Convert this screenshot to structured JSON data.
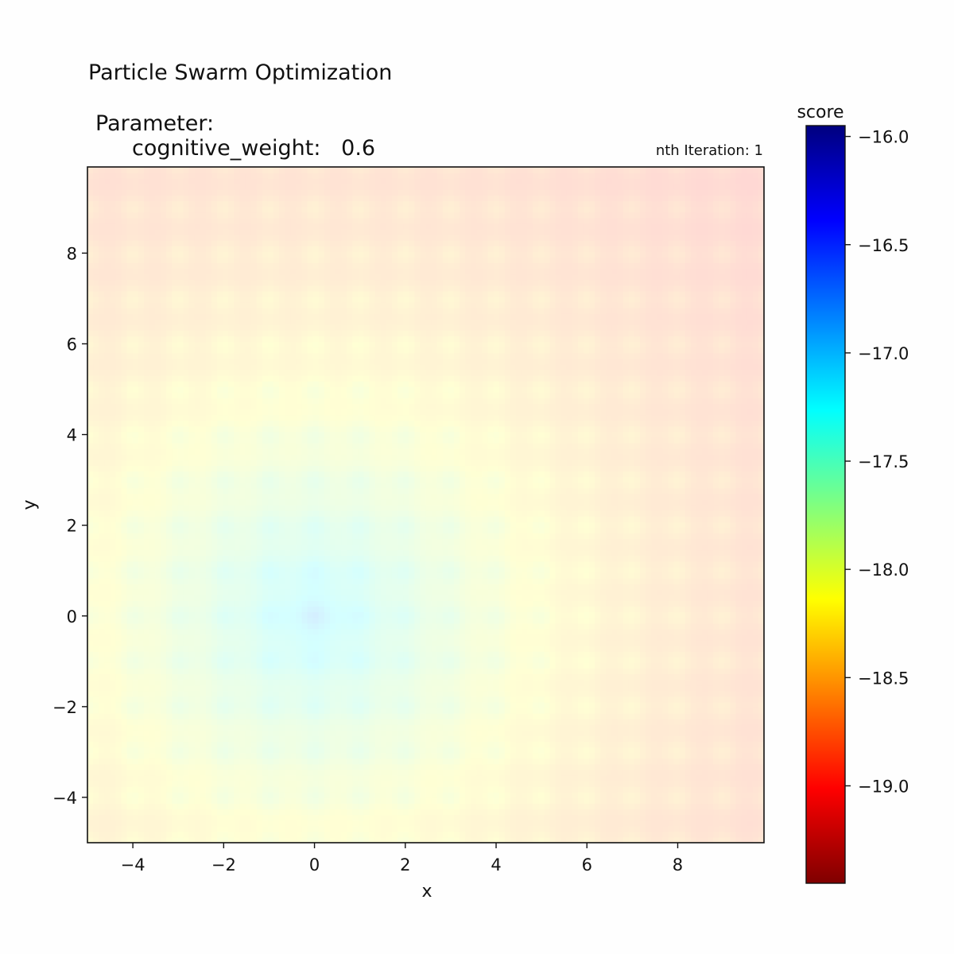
{
  "chart_data": {
    "type": "heatmap",
    "title": "Particle Swarm Optimization",
    "parameter_heading": "Parameter:",
    "parameter_line": "cognitive_weight:   0.6",
    "iteration_label": "nth Iteration: 1",
    "xlabel": "x",
    "ylabel": "y",
    "xlim": [
      -5,
      9.9
    ],
    "ylim": [
      -5,
      9.9
    ],
    "x_ticks": [
      -4,
      -2,
      0,
      2,
      4,
      6,
      8
    ],
    "x_tick_labels": [
      "−4",
      "−2",
      "0",
      "2",
      "4",
      "6",
      "8"
    ],
    "y_ticks": [
      -4,
      -2,
      0,
      2,
      4,
      6,
      8
    ],
    "y_tick_labels": [
      "−4",
      "−2",
      "0",
      "2",
      "4",
      "6",
      "8"
    ],
    "grid": false,
    "function": "negated Ackley-like surface: minimum near (0, 0), periodic bumps with period 1",
    "colorbar": {
      "label": "score",
      "colormap": "jet_r",
      "range": [
        -19.45,
        -15.95
      ],
      "ticks": [
        -16.0,
        -16.5,
        -17.0,
        -17.5,
        -18.0,
        -18.5,
        -19.0
      ],
      "tick_labels": [
        "−16.0",
        "−16.5",
        "−17.0",
        "−17.5",
        "−18.0",
        "−18.5",
        "−19.0"
      ]
    },
    "surface_opacity": 0.17
  }
}
